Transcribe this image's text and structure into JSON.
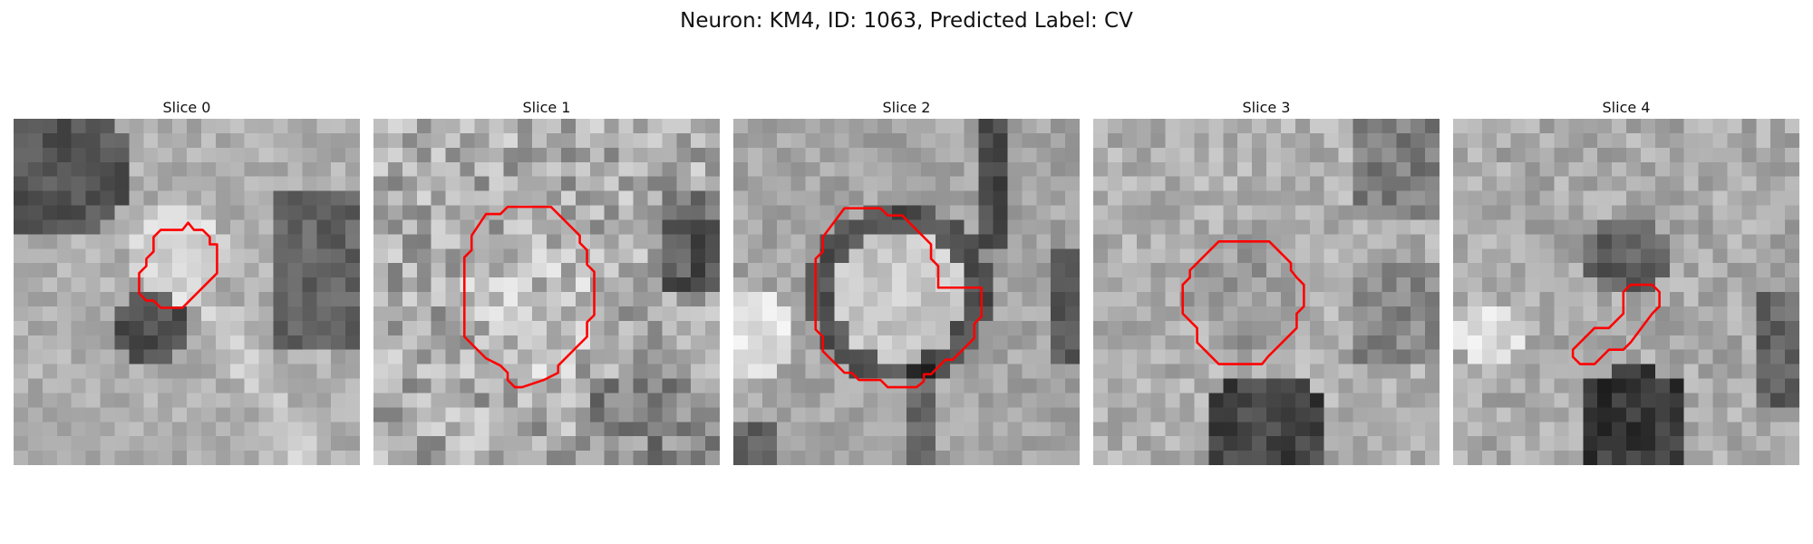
{
  "figure": {
    "title": "Neuron: KM4, ID: 1063, Predicted Label: CV"
  },
  "colors": {
    "contour": "#ff0000",
    "background": "#ffffff"
  },
  "slices": [
    {
      "title": "Slice 0"
    },
    {
      "title": "Slice 1"
    },
    {
      "title": "Slice 2"
    },
    {
      "title": "Slice 3"
    },
    {
      "title": "Slice 4"
    }
  ]
}
